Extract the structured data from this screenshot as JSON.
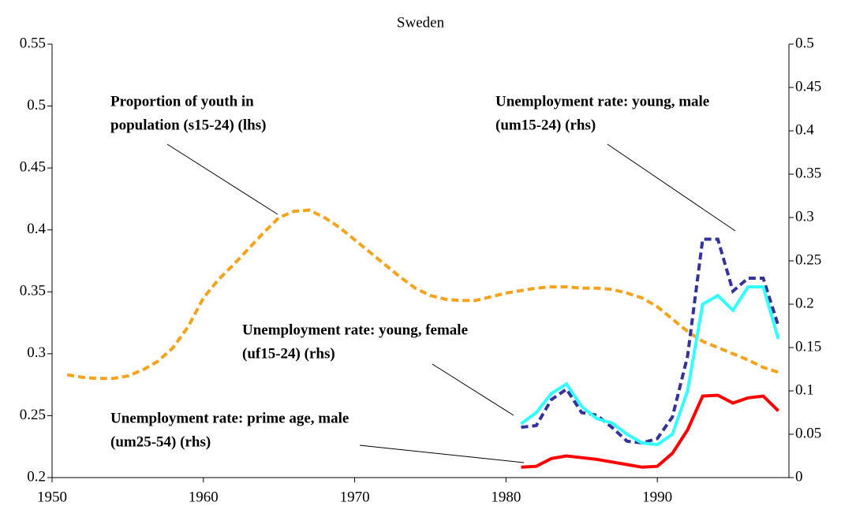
{
  "chart_data": {
    "type": "line",
    "title": "Sweden",
    "xlim": [
      1950,
      1998.7
    ],
    "xticks": [
      1950,
      1960,
      1970,
      1980,
      1990
    ],
    "ylim": [
      0.2,
      0.55
    ],
    "yticks": [
      0.2,
      0.25,
      0.3,
      0.35,
      0.4,
      0.45,
      0.5,
      0.55
    ],
    "y2lim": [
      0,
      0.5
    ],
    "y2ticks": [
      0,
      0.05,
      0.1,
      0.15,
      0.2,
      0.25,
      0.3,
      0.35,
      0.4,
      0.45,
      0.5
    ],
    "series": [
      {
        "name": "s15-24",
        "color": "#f5a31c",
        "style": "dashed",
        "axis": "y",
        "x": [
          1951,
          1952,
          1953,
          1954,
          1955,
          1956,
          1957,
          1958,
          1959,
          1960,
          1961,
          1962,
          1963,
          1964,
          1965,
          1966,
          1967,
          1968,
          1969,
          1970,
          1971,
          1972,
          1973,
          1974,
          1975,
          1976,
          1977,
          1978,
          1979,
          1980,
          1981,
          1982,
          1983,
          1984,
          1985,
          1986,
          1987,
          1988,
          1989,
          1990,
          1991,
          1992,
          1993,
          1994,
          1995,
          1996,
          1997,
          1998
        ],
        "values": [
          0.283,
          0.281,
          0.28,
          0.28,
          0.282,
          0.287,
          0.294,
          0.305,
          0.322,
          0.345,
          0.36,
          0.372,
          0.385,
          0.398,
          0.41,
          0.415,
          0.416,
          0.41,
          0.402,
          0.392,
          0.382,
          0.372,
          0.362,
          0.353,
          0.347,
          0.344,
          0.343,
          0.343,
          0.346,
          0.349,
          0.351,
          0.353,
          0.354,
          0.354,
          0.353,
          0.353,
          0.352,
          0.349,
          0.345,
          0.338,
          0.328,
          0.318,
          0.31,
          0.305,
          0.3,
          0.295,
          0.289,
          0.285
        ]
      },
      {
        "name": "um15-24",
        "color": "#333399",
        "style": "dashed",
        "axis": "y2",
        "x": [
          1981,
          1982,
          1983,
          1984,
          1985,
          1986,
          1987,
          1988,
          1989,
          1990,
          1991,
          1992,
          1993,
          1994,
          1995,
          1996,
          1997,
          1998
        ],
        "values": [
          0.058,
          0.06,
          0.09,
          0.102,
          0.075,
          0.072,
          0.058,
          0.042,
          0.04,
          0.045,
          0.07,
          0.14,
          0.275,
          0.275,
          0.215,
          0.23,
          0.23,
          0.175
        ]
      },
      {
        "name": "uf15-24",
        "color": "#33ffff",
        "style": "solid",
        "axis": "y2",
        "x": [
          1981,
          1982,
          1983,
          1984,
          1985,
          1986,
          1987,
          1988,
          1989,
          1990,
          1991,
          1992,
          1993,
          1994,
          1995,
          1996,
          1997,
          1998
        ],
        "values": [
          0.062,
          0.075,
          0.097,
          0.108,
          0.082,
          0.068,
          0.063,
          0.05,
          0.04,
          0.038,
          0.05,
          0.1,
          0.2,
          0.21,
          0.193,
          0.22,
          0.22,
          0.16
        ]
      },
      {
        "name": "um25-54",
        "color": "#ff0000",
        "style": "solid",
        "axis": "y2",
        "x": [
          1981,
          1982,
          1983,
          1984,
          1985,
          1986,
          1987,
          1988,
          1989,
          1990,
          1991,
          1992,
          1993,
          1994,
          1995,
          1996,
          1997,
          1998
        ],
        "values": [
          0.012,
          0.013,
          0.022,
          0.025,
          0.023,
          0.021,
          0.018,
          0.015,
          0.012,
          0.013,
          0.028,
          0.055,
          0.094,
          0.095,
          0.086,
          0.092,
          0.094,
          0.077
        ]
      }
    ],
    "annotations": [
      [
        "Proportion of youth in",
        "population (s15-24) (lhs)"
      ],
      [
        "Unemployment rate: young, male",
        "(um15-24) (rhs)"
      ],
      [
        "Unemployment rate: young, female",
        "(uf15-24) (rhs)"
      ],
      [
        "Unemployment rate: prime age, male",
        "(um25-54) (rhs)"
      ]
    ]
  }
}
